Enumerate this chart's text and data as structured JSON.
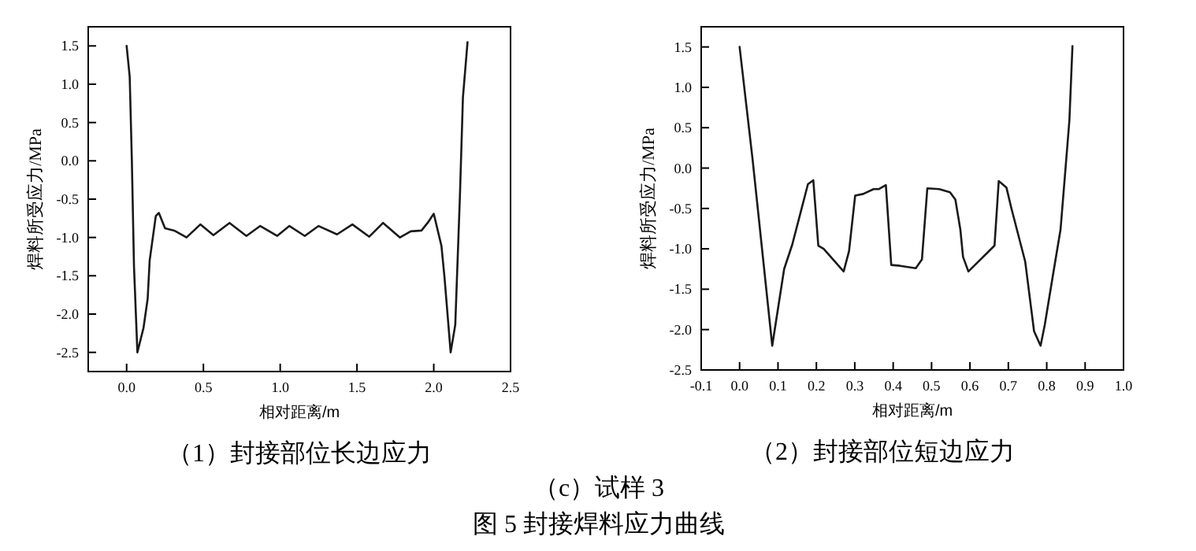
{
  "chart_data": [
    {
      "type": "line",
      "title": "（1）封接部位长边应力",
      "xlabel": "相对距离/m",
      "ylabel": "焊料所受应力/MPa",
      "xlim": [
        -0.25,
        2.5
      ],
      "ylim": [
        -2.75,
        1.75
      ],
      "xticks": [
        {
          "value": 0,
          "label": "0.0"
        },
        0.5,
        {
          "value": 1,
          "label": "1.0"
        },
        1.5,
        {
          "value": 2,
          "label": "2.0"
        },
        2.5
      ],
      "yticks": [
        -2.5,
        {
          "value": -2,
          "label": "-2.0"
        },
        -1.5,
        {
          "value": -1,
          "label": "-1.0"
        },
        -0.5,
        {
          "value": 0,
          "label": "0.0"
        },
        0.5,
        {
          "value": 1,
          "label": "1.0"
        },
        1.5
      ],
      "annotations": [
        "（c）试样 3",
        "图 5 封接焊料应力曲线"
      ],
      "series": [
        {
          "color": "#1a1a1a",
          "x": [
            0,
            0.02,
            0.034,
            0.048,
            0.07,
            0.11,
            0.137,
            0.15,
            0.19,
            0.21,
            0.25,
            0.31,
            0.39,
            0.48,
            0.565,
            0.67,
            0.78,
            0.87,
            0.98,
            1.06,
            1.16,
            1.25,
            1.37,
            1.47,
            1.58,
            1.67,
            1.78,
            1.85,
            1.92,
            1.96,
            2.0,
            2.05,
            2.07,
            2.11,
            2.14,
            2.17,
            2.19,
            2.22
          ],
          "values": [
            1.5,
            1.1,
            0,
            -1.38,
            -2.5,
            -2.18,
            -1.8,
            -1.3,
            -0.72,
            -0.68,
            -0.88,
            -0.91,
            -1.0,
            -0.83,
            -0.97,
            -0.81,
            -0.98,
            -0.85,
            -0.98,
            -0.85,
            -0.98,
            -0.85,
            -0.96,
            -0.83,
            -0.99,
            -0.81,
            -1.0,
            -0.92,
            -0.91,
            -0.81,
            -0.69,
            -1.11,
            -1.52,
            -2.5,
            -2.14,
            -0.48,
            0.83,
            1.55
          ]
        }
      ]
    },
    {
      "type": "line",
      "title": "（2）封接部位短边应力",
      "xlabel": "相对距离/m",
      "ylabel": "焊料所受应力/MPa",
      "xlim": [
        -0.1,
        1.0
      ],
      "ylim": [
        -2.5,
        1.75
      ],
      "xticks": [
        -0.1,
        {
          "value": 0,
          "label": "0.0"
        },
        0.1,
        0.2,
        0.3,
        0.4,
        0.5,
        0.6,
        0.7,
        0.8,
        0.9,
        {
          "value": 1,
          "label": "1.0"
        }
      ],
      "yticks": [
        -2.5,
        {
          "value": -2,
          "label": "-2.0"
        },
        -1.5,
        {
          "value": -1,
          "label": "-1.0"
        },
        -0.5,
        {
          "value": 0,
          "label": "0.0"
        },
        0.5,
        {
          "value": 1,
          "label": "1.0"
        },
        1.5
      ],
      "series": [
        {
          "color": "#1a1a1a",
          "x": [
            0,
            0.034,
            0.085,
            0.116,
            0.137,
            0.178,
            0.192,
            0.205,
            0.219,
            0.271,
            0.285,
            0.301,
            0.322,
            0.349,
            0.363,
            0.381,
            0.395,
            0.418,
            0.459,
            0.475,
            0.489,
            0.52,
            0.548,
            0.562,
            0.575,
            0.582,
            0.596,
            0.664,
            0.675,
            0.695,
            0.708,
            0.744,
            0.767,
            0.784,
            0.795,
            0.815,
            0.836,
            0.849,
            0.859,
            0.867
          ],
          "values": [
            1.5,
            0.1,
            -2.2,
            -1.25,
            -0.95,
            -0.2,
            -0.15,
            -0.96,
            -1.0,
            -1.28,
            -1.03,
            -0.34,
            -0.32,
            -0.26,
            -0.26,
            -0.21,
            -1.2,
            -1.21,
            -1.24,
            -1.13,
            -0.25,
            -0.26,
            -0.3,
            -0.39,
            -0.76,
            -1.1,
            -1.28,
            -0.96,
            -0.16,
            -0.24,
            -0.5,
            -1.16,
            -2.02,
            -2.2,
            -1.94,
            -1.36,
            -0.76,
            0.0,
            0.59,
            1.51
          ]
        }
      ]
    }
  ]
}
